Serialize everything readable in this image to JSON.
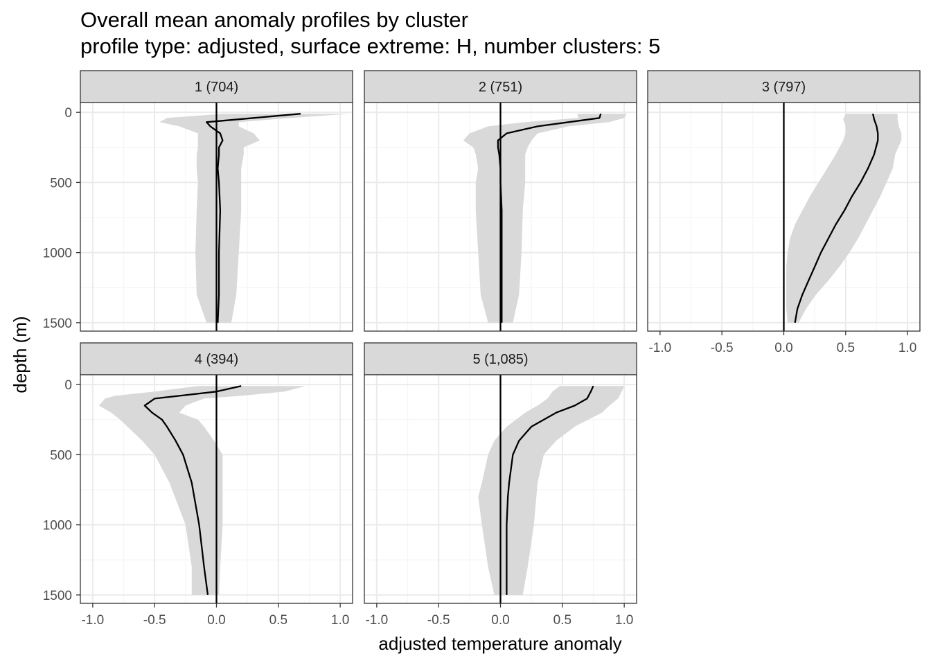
{
  "title": "Overall mean anomaly profiles by cluster",
  "subtitle": "profile type: adjusted, surface extreme: H, number clusters: 5",
  "chart_data": {
    "type": "line",
    "layout": "facet_wrap 2 rows x 3 cols, shared axes",
    "xlabel": "adjusted temperature anomaly",
    "ylabel": "depth (m)",
    "xlim": [
      -1.1,
      1.1
    ],
    "ylim": [
      1560,
      -70
    ],
    "y_reversed": true,
    "x_ticks": [
      -1.0,
      -0.5,
      0.0,
      0.5,
      1.0
    ],
    "x_tick_labels": [
      "-1.0",
      "-0.5",
      "0.0",
      "0.5",
      "1.0"
    ],
    "y_ticks": [
      0,
      500,
      1000,
      1500
    ],
    "y_tick_labels": [
      "0",
      "500",
      "1000",
      "1500"
    ],
    "vline_x": 0,
    "grid": true,
    "legend": "none",
    "colors": {
      "mean_line": "#000000",
      "ribbon": "#d9d9d9",
      "strip": "#d9d9d9",
      "panel_border": "#333333",
      "grid_major": "#ebebeb",
      "grid_minor": "#f5f5f5"
    },
    "panels": [
      {
        "label": "1 (704)",
        "depth": [
          10,
          40,
          70,
          100,
          150,
          200,
          250,
          300,
          400,
          500,
          700,
          1000,
          1300,
          1500
        ],
        "mean": [
          0.68,
          0.3,
          -0.08,
          -0.05,
          0.03,
          0.05,
          0.02,
          0.02,
          0.01,
          0.02,
          0.03,
          0.02,
          0.02,
          0.01
        ],
        "lower": [
          0.05,
          -0.4,
          -0.46,
          -0.3,
          -0.15,
          -0.15,
          -0.15,
          -0.16,
          -0.16,
          -0.15,
          -0.16,
          -0.17,
          -0.16,
          -0.08
        ],
        "upper": [
          1.08,
          0.6,
          0.18,
          0.18,
          0.3,
          0.35,
          0.22,
          0.22,
          0.2,
          0.2,
          0.2,
          0.18,
          0.16,
          0.12
        ]
      },
      {
        "label": "2 (751)",
        "depth": [
          10,
          40,
          70,
          100,
          150,
          200,
          250,
          300,
          400,
          500,
          700,
          1000,
          1300,
          1500
        ],
        "mean": [
          0.81,
          0.8,
          0.55,
          0.3,
          0.05,
          -0.02,
          -0.02,
          -0.01,
          0.0,
          0.0,
          0.01,
          0.01,
          0.01,
          0.01
        ],
        "lower": [
          0.62,
          0.63,
          0.2,
          -0.1,
          -0.25,
          -0.3,
          -0.22,
          -0.2,
          -0.18,
          -0.2,
          -0.2,
          -0.18,
          -0.16,
          -0.1
        ],
        "upper": [
          1.02,
          1.0,
          0.88,
          0.55,
          0.3,
          0.25,
          0.22,
          0.2,
          0.2,
          0.2,
          0.18,
          0.17,
          0.15,
          0.1
        ]
      },
      {
        "label": "3 (797)",
        "depth": [
          10,
          50,
          100,
          150,
          200,
          300,
          400,
          500,
          600,
          700,
          800,
          900,
          1000,
          1100,
          1200,
          1300,
          1400,
          1500
        ],
        "mean": [
          0.72,
          0.73,
          0.75,
          0.76,
          0.76,
          0.73,
          0.68,
          0.62,
          0.55,
          0.49,
          0.42,
          0.36,
          0.3,
          0.25,
          0.2,
          0.15,
          0.11,
          0.09
        ],
        "lower": [
          0.5,
          0.48,
          0.5,
          0.5,
          0.48,
          0.42,
          0.35,
          0.28,
          0.21,
          0.15,
          0.09,
          0.05,
          0.03,
          0.02,
          0.02,
          0.02,
          0.02,
          0.03
        ],
        "upper": [
          0.92,
          0.92,
          0.93,
          0.95,
          0.95,
          0.9,
          0.88,
          0.83,
          0.78,
          0.72,
          0.66,
          0.6,
          0.53,
          0.45,
          0.36,
          0.26,
          0.18,
          0.12
        ]
      },
      {
        "label": "4 (394)",
        "depth": [
          10,
          50,
          80,
          100,
          150,
          200,
          250,
          300,
          400,
          500,
          700,
          1000,
          1300,
          1500
        ],
        "mean": [
          0.2,
          0.0,
          -0.3,
          -0.5,
          -0.58,
          -0.52,
          -0.44,
          -0.4,
          -0.33,
          -0.27,
          -0.2,
          -0.14,
          -0.1,
          -0.07
        ],
        "lower": [
          -0.15,
          -0.5,
          -0.82,
          -0.9,
          -0.95,
          -0.85,
          -0.78,
          -0.72,
          -0.6,
          -0.5,
          -0.38,
          -0.25,
          -0.2,
          -0.2
        ],
        "upper": [
          0.72,
          0.55,
          0.2,
          -0.1,
          -0.25,
          -0.3,
          -0.15,
          -0.1,
          -0.02,
          0.05,
          0.05,
          0.05,
          0.03,
          0.02
        ]
      },
      {
        "label": "5 (1,085)",
        "depth": [
          10,
          50,
          100,
          150,
          200,
          300,
          400,
          500,
          700,
          800,
          1000,
          1300,
          1500
        ],
        "mean": [
          0.75,
          0.73,
          0.7,
          0.6,
          0.45,
          0.25,
          0.15,
          0.1,
          0.07,
          0.06,
          0.05,
          0.05,
          0.05
        ],
        "lower": [
          0.48,
          0.42,
          0.38,
          0.3,
          0.2,
          0.05,
          -0.05,
          -0.1,
          -0.15,
          -0.18,
          -0.15,
          -0.1,
          -0.05
        ],
        "upper": [
          1.0,
          0.98,
          0.95,
          0.88,
          0.82,
          0.6,
          0.45,
          0.35,
          0.3,
          0.29,
          0.27,
          0.22,
          0.18
        ]
      }
    ]
  }
}
